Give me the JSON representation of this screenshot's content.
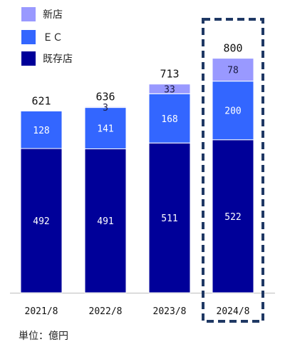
{
  "chart_data": {
    "type": "bar",
    "stacked": true,
    "categories": [
      "2021/8",
      "2022/8",
      "2023/8",
      "2024/8"
    ],
    "series": [
      {
        "name": "既存店",
        "values": [
          492,
          491,
          511,
          522
        ]
      },
      {
        "name": "ＥＣ",
        "values": [
          128,
          141,
          168,
          200
        ]
      },
      {
        "name": "新店",
        "values": [
          0,
          3,
          33,
          78
        ]
      }
    ],
    "segment_labels": [
      [
        "492",
        "491",
        "511",
        "522"
      ],
      [
        "128",
        "141",
        "168",
        "200"
      ],
      [
        "",
        "3",
        "33",
        "78"
      ]
    ],
    "totals": [
      "621",
      "636",
      "713",
      "800"
    ],
    "highlighted_category": "2024/8",
    "legend_order": [
      "新店",
      "ＥＣ",
      "既存店"
    ],
    "legend_position": "top-left",
    "colors": {
      "既存店": "#000099",
      "ＥＣ": "#3366ff",
      "新店": "#9999ff",
      "highlight_border": "#1f3864"
    },
    "ylim": [
      0,
      820
    ],
    "grid": false
  },
  "unit_note": "単位：億円"
}
